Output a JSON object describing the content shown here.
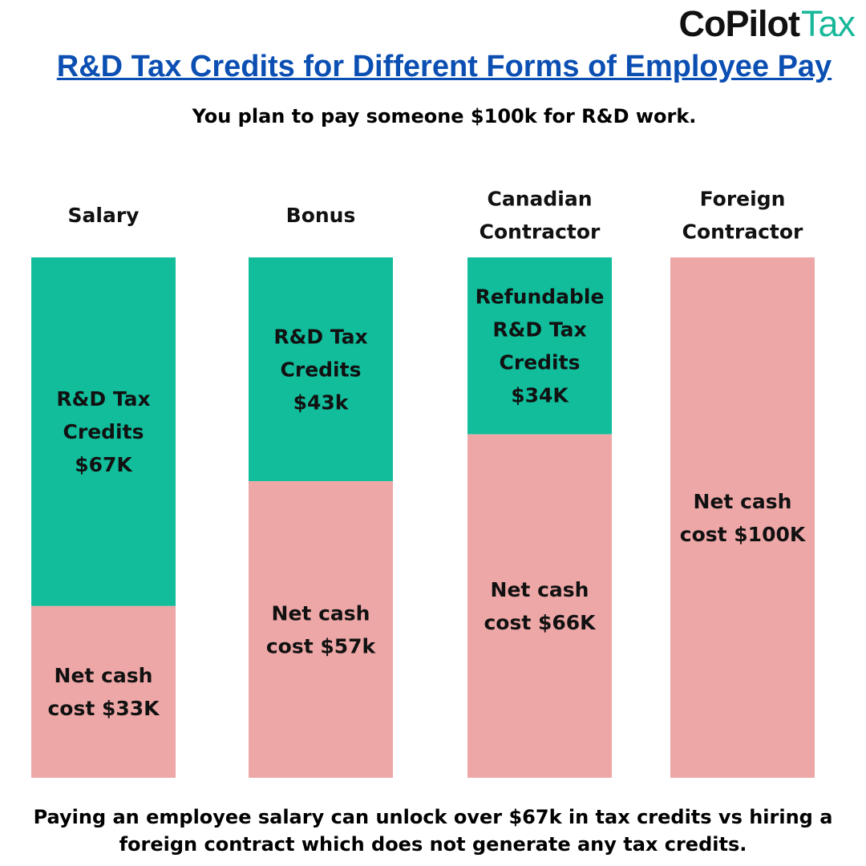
{
  "brand": {
    "name_main": "CoPilot",
    "name_accent": "Tax"
  },
  "header": {
    "title": "R&D Tax Credits for Different Forms of Employee Pay",
    "subtitle": "You plan to pay someone $100k for R&D work."
  },
  "chart_data": {
    "type": "bar",
    "stacked": true,
    "total": 100,
    "categories": [
      [
        "Salary"
      ],
      [
        "Bonus"
      ],
      [
        "Canadian",
        "Contractor"
      ],
      [
        "Foreign",
        "Contractor"
      ]
    ],
    "series": [
      {
        "name": "R&D Tax Credits",
        "color": "#12bd9c",
        "values": [
          67,
          43,
          34,
          0
        ],
        "labels": [
          [
            "R&D Tax",
            "Credits",
            "$67K"
          ],
          [
            "R&D Tax",
            "Credits",
            "$43k"
          ],
          [
            "Refundable",
            "R&D Tax",
            "Credits",
            "$34K"
          ],
          []
        ]
      },
      {
        "name": "Net cash cost",
        "color": "#eea7a7",
        "values": [
          33,
          57,
          66,
          100
        ],
        "labels": [
          [
            "Net cash",
            "cost $33K"
          ],
          [
            "Net cash",
            "cost $57k"
          ],
          [
            "Net cash",
            "cost $66K"
          ],
          [
            "Net cash",
            "cost $100K"
          ]
        ]
      }
    ]
  },
  "footer": {
    "text": "Paying an employee salary can unlock over $67k in tax credits vs hiring a foreign contract which does not generate any tax credits."
  }
}
